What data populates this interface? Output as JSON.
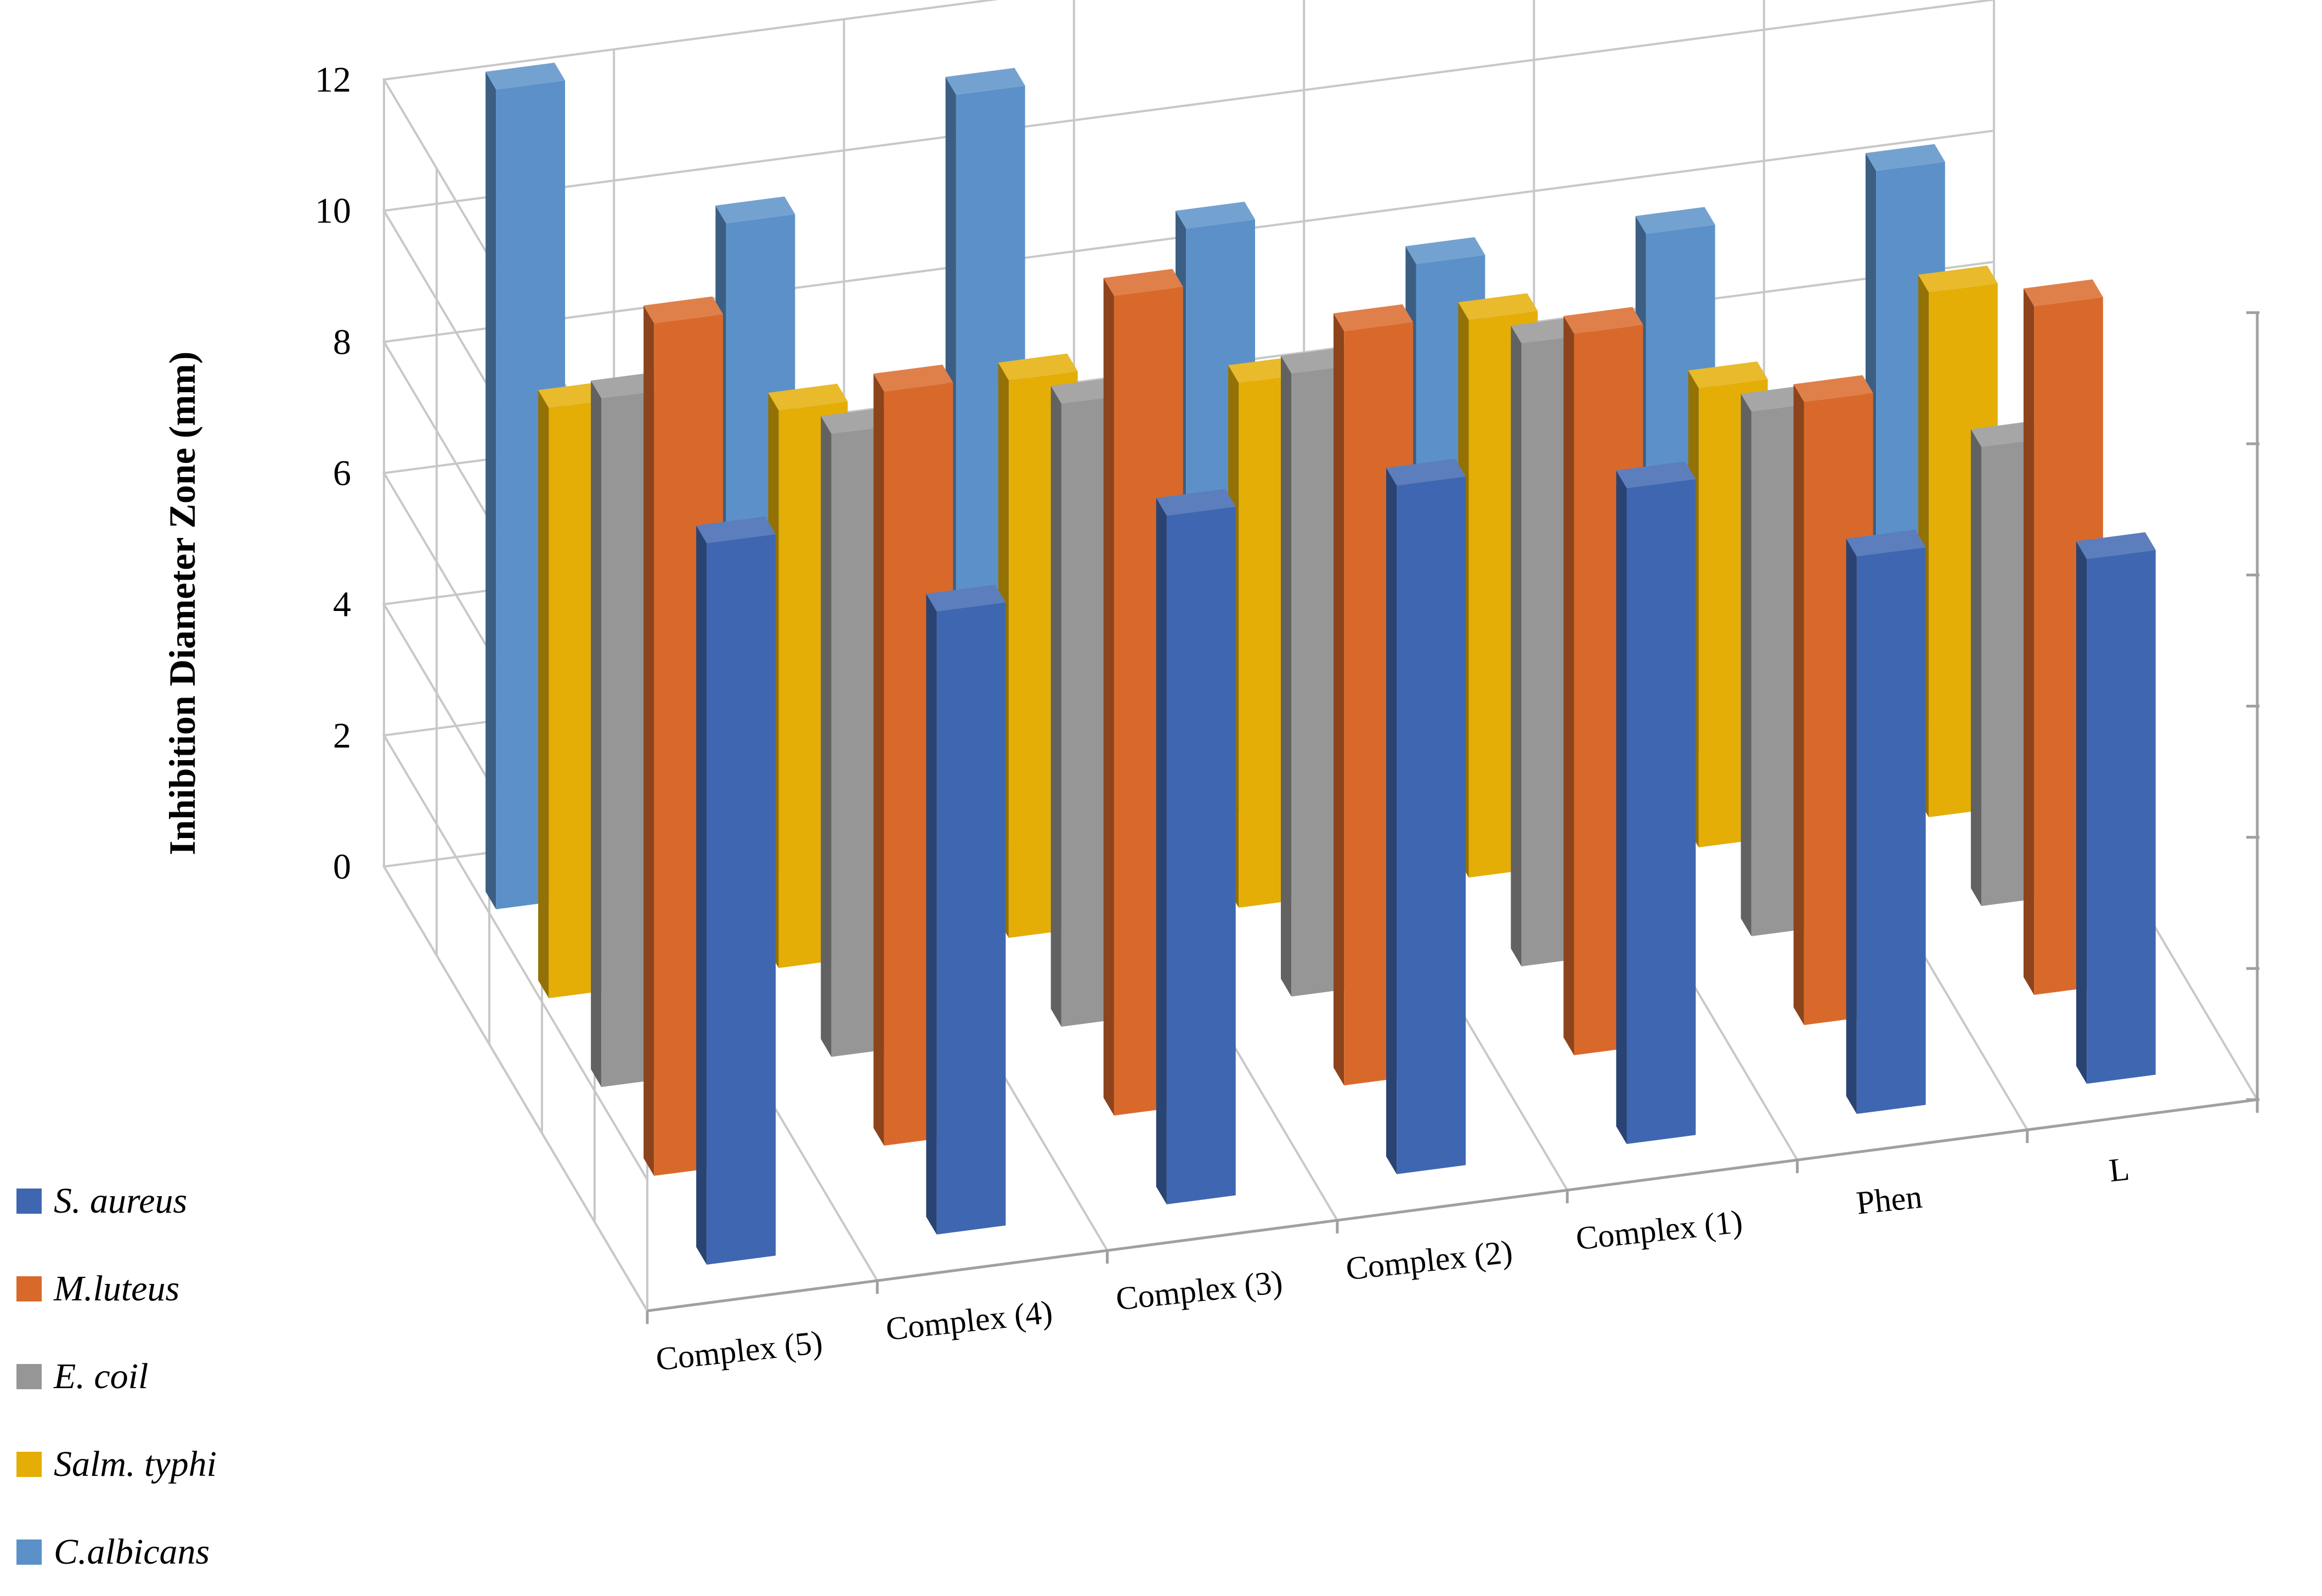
{
  "chart_data": {
    "type": "bar",
    "subtype": "3d-column",
    "title": "",
    "ylabel": "Inhibition Diameter Zone (mm)",
    "xlabel": "",
    "ylim": [
      0,
      12
    ],
    "yticks": [
      "0",
      "2",
      "4",
      "6",
      "8",
      "10",
      "12"
    ],
    "categories": [
      "Complex (5)",
      "Complex (4)",
      "Complex (3)",
      "Complex (2)",
      "Complex (1)",
      "Phen",
      "L"
    ],
    "series": [
      {
        "name": "S. aureus",
        "color": "#3F67B1",
        "values": [
          11,
          9.5,
          10.5,
          10.5,
          10,
          8.5,
          8
        ]
      },
      {
        "name": "M.luteus",
        "color": "#D9692B",
        "values": [
          13,
          11.5,
          12.5,
          11.5,
          11,
          9.5,
          10.5
        ]
      },
      {
        "name": "E. coil",
        "color": "#969696",
        "values": [
          10.5,
          9.5,
          9.5,
          9.5,
          9.5,
          8,
          7
        ]
      },
      {
        "name": "Salm. typhi",
        "color": "#E4AE07",
        "values": [
          9,
          8.5,
          8.5,
          8,
          8.5,
          7,
          8
        ]
      },
      {
        "name": "C.albicans",
        "color": "#5B91C8",
        "values": [
          12.5,
          10,
          11.5,
          9,
          8,
          8,
          8.5
        ]
      }
    ]
  }
}
